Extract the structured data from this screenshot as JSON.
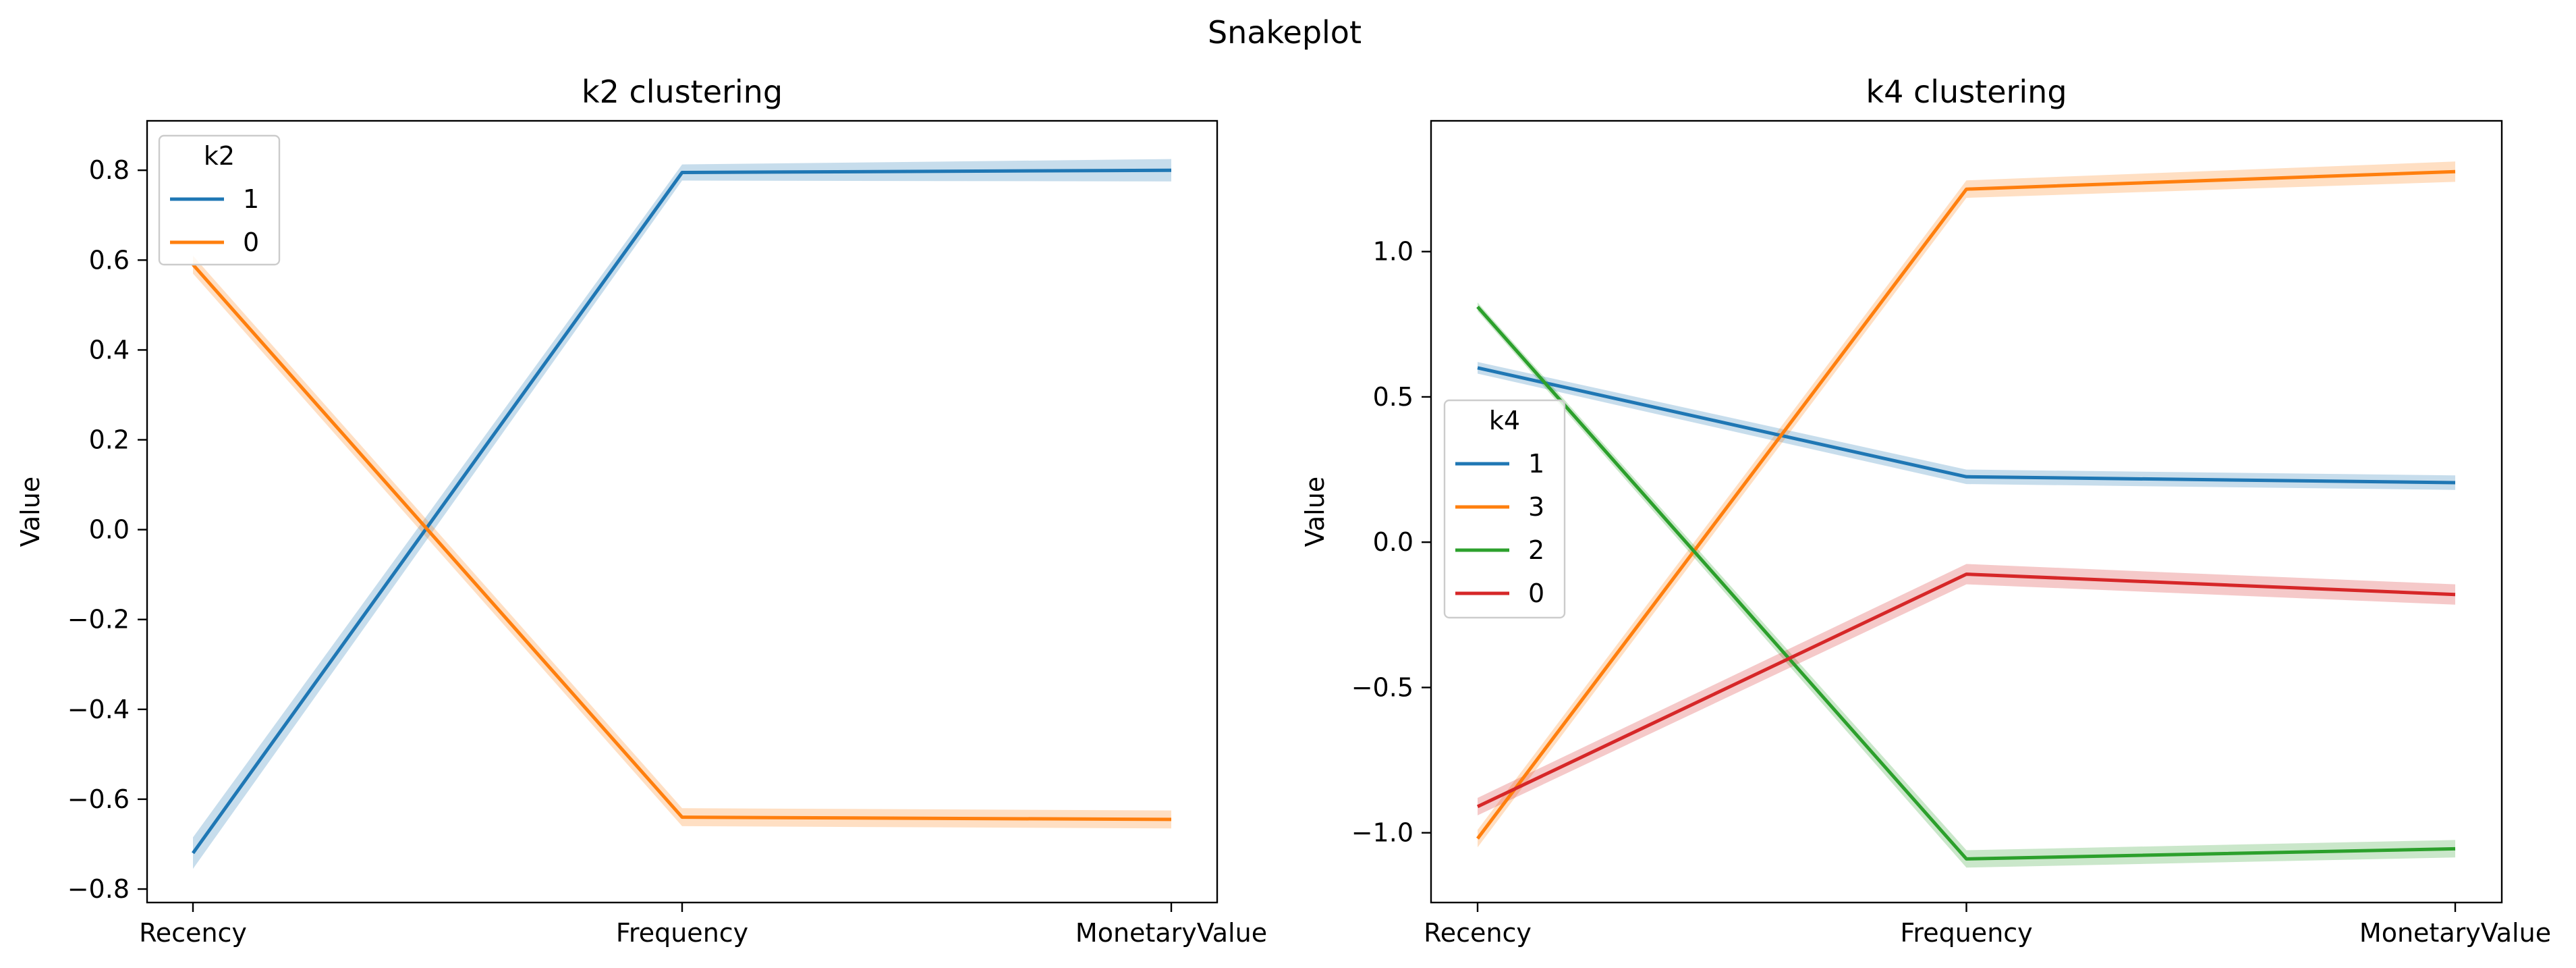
{
  "figure": {
    "suptitle": "Snakeplot"
  },
  "chart_data": [
    {
      "type": "line",
      "title": "k2 clustering",
      "xlabel": "",
      "ylabel": "Value",
      "categories": [
        "Recency",
        "Frequency",
        "MonetaryValue"
      ],
      "ylim": [
        -0.83,
        0.91
      ],
      "yticks": [
        0.8,
        0.6,
        0.4,
        0.2,
        0.0,
        -0.2,
        -0.4,
        -0.6,
        -0.8
      ],
      "ytick_labels": [
        "0.8",
        "0.6",
        "0.4",
        "0.2",
        "0.0",
        "−0.2",
        "−0.4",
        "−0.6",
        "−0.8"
      ],
      "grid": false,
      "legend": {
        "title": "k2",
        "position": "top-left"
      },
      "series": [
        {
          "name": "1",
          "color": "#1f77b4",
          "values": [
            -0.72,
            0.795,
            0.8
          ],
          "ci_half_width": [
            0.035,
            0.018,
            0.025
          ]
        },
        {
          "name": "0",
          "color": "#ff7f0e",
          "values": [
            0.59,
            -0.64,
            -0.645
          ],
          "ci_half_width": [
            0.02,
            0.02,
            0.02
          ]
        }
      ]
    },
    {
      "type": "line",
      "title": "k4 clustering",
      "xlabel": "",
      "ylabel": "Value",
      "categories": [
        "Recency",
        "Frequency",
        "MonetaryValue"
      ],
      "ylim": [
        -1.24,
        1.45
      ],
      "yticks": [
        1.0,
        0.5,
        0.0,
        -0.5,
        -1.0
      ],
      "ytick_labels": [
        "1.0",
        "0.5",
        "0.0",
        "−0.5",
        "−1.0"
      ],
      "grid": false,
      "legend": {
        "title": "k4",
        "position": "center-left"
      },
      "series": [
        {
          "name": "1",
          "color": "#1f77b4",
          "values": [
            0.6,
            0.225,
            0.205
          ],
          "ci_half_width": [
            0.02,
            0.025,
            0.025
          ]
        },
        {
          "name": "3",
          "color": "#ff7f0e",
          "values": [
            -1.02,
            1.215,
            1.275
          ],
          "ci_half_width": [
            0.03,
            0.03,
            0.035
          ]
        },
        {
          "name": "2",
          "color": "#2ca02c",
          "values": [
            0.81,
            -1.09,
            -1.055
          ],
          "ci_half_width": [
            0.015,
            0.03,
            0.03
          ]
        },
        {
          "name": "0",
          "color": "#d62728",
          "values": [
            -0.91,
            -0.11,
            -0.18
          ],
          "ci_half_width": [
            0.03,
            0.035,
            0.035
          ]
        }
      ]
    }
  ]
}
